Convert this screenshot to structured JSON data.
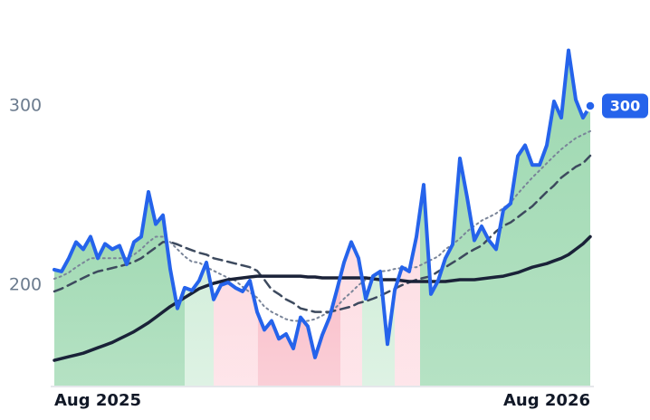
{
  "chart_data": {
    "type": "line",
    "xlim": [
      0,
      74
    ],
    "ylim": [
      143.4,
      359.1
    ],
    "yticks": [
      200,
      300
    ],
    "xticks": [
      {
        "value": 0,
        "label": "Aug 2025"
      },
      {
        "value": 74,
        "label": "Aug 2026"
      }
    ],
    "grid": false,
    "regions": [
      {
        "start": 0,
        "end": 18,
        "color": "#9dd8b0"
      },
      {
        "start": 18,
        "end": 22,
        "color": "#d3eedb"
      },
      {
        "start": 22,
        "end": 28.1,
        "color": "#fddde3"
      },
      {
        "start": 28.1,
        "end": 39.5,
        "color": "#f9bfca"
      },
      {
        "start": 39.5,
        "end": 42.5,
        "color": "#fddde3"
      },
      {
        "start": 42.5,
        "end": 47,
        "color": "#d3eedb"
      },
      {
        "start": 47,
        "end": 50.5,
        "color": "#fddde3"
      },
      {
        "start": 50.5,
        "end": 74,
        "color": "#9dd8b0"
      }
    ],
    "series": [
      {
        "color": "#2563eb",
        "style": "solid",
        "width": 4,
        "values": [
          208.6,
          207.6,
          215,
          224,
          220,
          227,
          215,
          223,
          220,
          222,
          211.6,
          224,
          227,
          252,
          234,
          239,
          209,
          187,
          198.5,
          197,
          202.5,
          212.6,
          192,
          200,
          201.5,
          198.5,
          196.5,
          202.5,
          185,
          175,
          180,
          170,
          172.7,
          164.6,
          182,
          177,
          159.6,
          172.2,
          182,
          197,
          212.6,
          224,
          215,
          192.4,
          205,
          207.6,
          167,
          197,
          210,
          207.6,
          227,
          256,
          195,
          202.5,
          215,
          222.7,
          270.7,
          249,
          225,
          232.8,
          225,
          220,
          242,
          245.5,
          272,
          278,
          267,
          267,
          278,
          302.5,
          293.4,
          331,
          303.5,
          293.4,
          300
        ]
      },
      {
        "color": "#1a2238",
        "style": "solid",
        "width": 3.5,
        "values": [
          158,
          159,
          160,
          161,
          162,
          163.5,
          165,
          166.5,
          168,
          170,
          172,
          174,
          176.5,
          179,
          182,
          185,
          188,
          190.5,
          193,
          195.5,
          198,
          199.5,
          201,
          202,
          203,
          203.5,
          204,
          204.5,
          205,
          205,
          205,
          205,
          205,
          205,
          205,
          204.5,
          204.5,
          204,
          204,
          204,
          204,
          204,
          204,
          204,
          203.5,
          203,
          203,
          203,
          202.5,
          202,
          202,
          202,
          202,
          202,
          202,
          202.5,
          203,
          203,
          203,
          203.5,
          204,
          204.5,
          205,
          206,
          207,
          208.5,
          210,
          211,
          212,
          213.5,
          215,
          217,
          220,
          223,
          227
        ]
      },
      {
        "color": "#3d4a5e",
        "style": "dashed",
        "width": 2.5,
        "values": [
          196.5,
          198,
          200,
          202,
          204,
          206,
          207.6,
          208.5,
          209.5,
          210.5,
          211.6,
          213,
          215,
          218,
          221,
          224,
          224,
          222.7,
          221,
          219.5,
          218,
          217,
          215,
          214,
          213,
          212,
          211,
          210,
          208,
          203,
          197.5,
          195,
          192,
          190,
          187,
          186,
          185,
          185,
          185,
          186,
          187,
          188,
          190,
          191,
          192.4,
          194,
          196,
          198,
          200,
          201.5,
          203,
          204,
          205,
          207.6,
          210,
          212.5,
          215,
          217.7,
          220,
          222,
          226,
          230,
          233,
          235,
          237.9,
          241,
          244,
          248,
          252,
          255.6,
          260,
          263,
          266,
          268,
          272.2
        ]
      },
      {
        "color": "#7a8599",
        "style": "dotted",
        "width": 2,
        "values": [
          203.5,
          205,
          207,
          210,
          212.5,
          215,
          215,
          215,
          215,
          215,
          215,
          217,
          220,
          224,
          227,
          227,
          224,
          220,
          216,
          213,
          212.6,
          210,
          208,
          206,
          204,
          202.5,
          199,
          196,
          193,
          188,
          185,
          183,
          181,
          180,
          180,
          180,
          181,
          183,
          185,
          188,
          192.4,
          196,
          200,
          203,
          205,
          207.6,
          208,
          209,
          209.5,
          210,
          210,
          212,
          214,
          216,
          220,
          222.7,
          226,
          230,
          233,
          236,
          237.9,
          240,
          243,
          246,
          251,
          255.6,
          260,
          264,
          268,
          272,
          275.8,
          279,
          282,
          284,
          285.9
        ]
      }
    ]
  }
}
